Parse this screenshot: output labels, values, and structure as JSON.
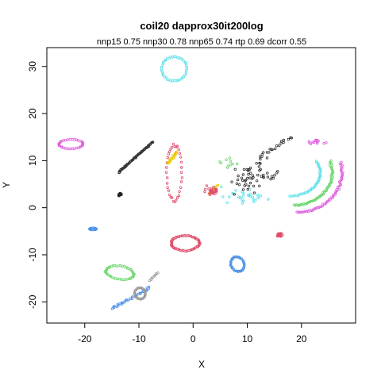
{
  "chart_data": {
    "type": "scatter",
    "title": "coil20 dapprox30it200log",
    "subtitle": "nnp15 0.75 nnp30 0.78 nnp65 0.74 rtp 0.69 dcorr 0.55",
    "xlabel": "X",
    "ylabel": "Y",
    "xlim": [
      -27,
      30
    ],
    "ylim": [
      -24.5,
      34
    ],
    "xticks": [
      -20,
      -10,
      0,
      10,
      20
    ],
    "yticks": [
      -20,
      -10,
      0,
      10,
      20,
      30
    ],
    "grid": false,
    "legend": "none",
    "marker": "circle",
    "clusters": [
      {
        "color": "#DF60DF",
        "shape": "ring",
        "points": 34,
        "center": [
          -22.5,
          13.5
        ],
        "radius": [
          2.2,
          1.0
        ],
        "angle": 0
      },
      {
        "color": "#5AE0E8",
        "shape": "ring",
        "points": 44,
        "center": [
          -3.5,
          29.5
        ],
        "radius": [
          2.3,
          2.6
        ],
        "angle": 0
      },
      {
        "color": "#4A90E8",
        "shape": "ring",
        "points": 14,
        "center": [
          -18.5,
          -4.5
        ],
        "radius": [
          0.6,
          0.2
        ],
        "angle": 0
      },
      {
        "color": "#4A90E8",
        "shape": "ring",
        "points": 40,
        "center": [
          8.2,
          -12.0
        ],
        "radius": [
          1.2,
          1.6
        ],
        "angle": 0.3
      },
      {
        "color": "#222222",
        "shape": "blob",
        "points": 16,
        "center": [
          -13.5,
          2.8
        ],
        "radius": [
          0.4,
          0.4
        ],
        "angle": 0
      },
      {
        "color": "#303030",
        "shape": "line",
        "points": 60,
        "from": [
          -13.8,
          7.5
        ],
        "to": [
          -7.5,
          14.0
        ],
        "spread": 0.5
      },
      {
        "color": "#DF4A6A",
        "shape": "ring",
        "points": 34,
        "center": [
          -3.5,
          7.5
        ],
        "radius": [
          1.4,
          6.0
        ],
        "angle": 0
      },
      {
        "color": "#E8C800",
        "shape": "line",
        "points": 22,
        "from": [
          -4.6,
          9.5
        ],
        "to": [
          -3.0,
          11.8
        ],
        "spread": 0.6
      },
      {
        "color": "#E8C800",
        "shape": "line",
        "points": 10,
        "from": [
          3.0,
          3.0
        ],
        "to": [
          4.5,
          4.8
        ],
        "spread": 0.4
      },
      {
        "color": "#DF4A6A",
        "shape": "ring",
        "points": 56,
        "center": [
          -1.5,
          -7.5
        ],
        "radius": [
          2.6,
          1.6
        ],
        "angle": 0
      },
      {
        "color": "#DF4A6A",
        "shape": "blob",
        "points": 20,
        "center": [
          16.0,
          -5.8
        ],
        "radius": [
          0.8,
          0.6
        ],
        "angle": 0
      },
      {
        "color": "#6CD66C",
        "shape": "ring",
        "points": 46,
        "center": [
          -13.5,
          -13.8
        ],
        "radius": [
          2.6,
          1.4
        ],
        "angle": -0.2
      },
      {
        "color": "#4A90E8",
        "shape": "line",
        "points": 34,
        "from": [
          -15.0,
          -21.5
        ],
        "to": [
          -8.0,
          -17.0
        ],
        "spread": 0.8
      },
      {
        "color": "#9A9A9A",
        "shape": "ring",
        "points": 30,
        "center": [
          -9.8,
          -18.2
        ],
        "radius": [
          1.0,
          1.2
        ],
        "angle": 0
      },
      {
        "color": "#9A9A9A",
        "shape": "line",
        "points": 8,
        "from": [
          -8.0,
          -15.5
        ],
        "to": [
          -6.5,
          -13.8
        ],
        "spread": 0.3
      },
      {
        "color": "#DF60DF",
        "shape": "arc",
        "points": 60,
        "center": [
          19.0,
          7.5
        ],
        "radius": [
          8.5,
          8.5
        ],
        "start": -1.55,
        "end": 0.25
      },
      {
        "color": "#6CD66C",
        "shape": "arc",
        "points": 60,
        "center": [
          18.5,
          7.5
        ],
        "radius": [
          7.2,
          7.0
        ],
        "start": -1.55,
        "end": 0.35
      },
      {
        "color": "#5AE0E8",
        "shape": "arc",
        "points": 40,
        "center": [
          18.0,
          7.5
        ],
        "radius": [
          5.5,
          5.0
        ],
        "start": -1.6,
        "end": 0.5
      },
      {
        "color": "#5AE0E8",
        "shape": "scatter",
        "points": 30,
        "center": [
          9.0,
          2.5
        ],
        "radius": [
          6.5,
          2.5
        ],
        "angle": 0
      },
      {
        "color": "#303030",
        "shape": "scatter",
        "points": 55,
        "center": [
          11.0,
          6.5
        ],
        "radius": [
          7.5,
          4.5
        ],
        "angle": 0.4
      },
      {
        "color": "#303030",
        "shape": "line",
        "points": 20,
        "from": [
          12.0,
          10.5
        ],
        "to": [
          18.0,
          15.0
        ],
        "spread": 1.0
      },
      {
        "color": "#DF4A6A",
        "shape": "scatter",
        "points": 26,
        "center": [
          3.5,
          3.5
        ],
        "radius": [
          2.0,
          1.6
        ],
        "angle": 0
      },
      {
        "color": "#6CD66C",
        "shape": "scatter",
        "points": 10,
        "center": [
          6.0,
          9.5
        ],
        "radius": [
          2.5,
          1.5
        ],
        "angle": 0
      },
      {
        "color": "#DF60DF",
        "shape": "scatter",
        "points": 14,
        "center": [
          23.0,
          14.0
        ],
        "radius": [
          2.0,
          1.0
        ],
        "angle": 0
      }
    ]
  }
}
